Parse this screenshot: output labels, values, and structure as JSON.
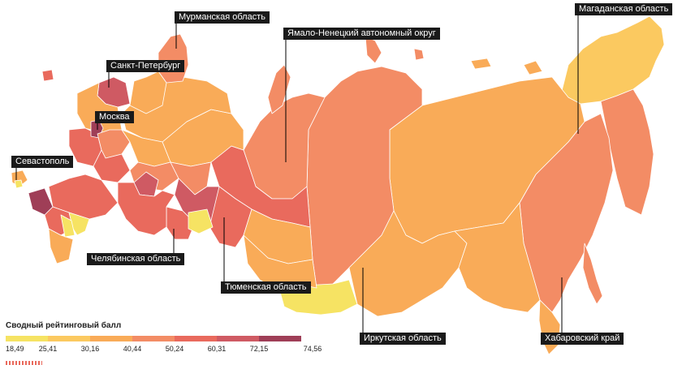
{
  "palette": {
    "c1": "#f6e363",
    "c2": "#fbc960",
    "c3": "#f9ab58",
    "c4": "#f38c65",
    "c5": "#e96a5d",
    "c6": "#cf5a63",
    "c7": "#9f3e57",
    "border": "#ffffff"
  },
  "legend": {
    "title": "Сводный рейтинговый балл",
    "ticks": [
      "18,49",
      "25,41",
      "30,16",
      "40,44",
      "50,24",
      "60,31",
      "72,15",
      "74,56"
    ],
    "colors": [
      "#f6e363",
      "#fbc960",
      "#f9ab58",
      "#f38c65",
      "#e96a5d",
      "#cf5a63",
      "#9f3e57"
    ]
  },
  "callouts": {
    "murmansk": "Мурманская область",
    "spb": "Санкт-Петербург",
    "moscow": "Москва",
    "sevastopol": "Севастополь",
    "yamal": "Ямало-Ненецкий автономный округ",
    "magadan": "Магаданская область",
    "chelyabinsk": "Челябинская область",
    "tyumen": "Тюменская область",
    "irkutsk": "Иркутская область",
    "khabarovsk": "Хабаровский край"
  }
}
